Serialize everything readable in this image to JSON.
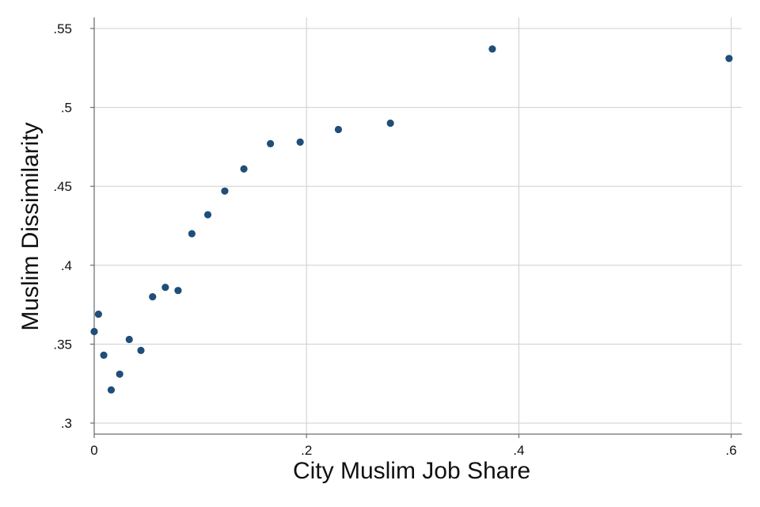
{
  "chart_data": {
    "type": "scatter",
    "title": "",
    "xlabel": "City Muslim Job Share",
    "ylabel": "Muslim Dissimilarity",
    "xlim": [
      0,
      0.61
    ],
    "ylim": [
      0.293,
      0.557
    ],
    "x_ticks": [
      {
        "value": 0,
        "label": "0"
      },
      {
        "value": 0.2,
        "label": ".2"
      },
      {
        "value": 0.4,
        "label": ".4"
      },
      {
        "value": 0.6,
        "label": ".6"
      }
    ],
    "y_ticks": [
      {
        "value": 0.3,
        "label": ".3"
      },
      {
        "value": 0.35,
        "label": ".35"
      },
      {
        "value": 0.4,
        "label": ".4"
      },
      {
        "value": 0.45,
        "label": ".45"
      },
      {
        "value": 0.5,
        "label": ".5"
      },
      {
        "value": 0.55,
        "label": ".55"
      }
    ],
    "grid": true,
    "marker_color": "#1f4e79",
    "points": [
      {
        "x": 0.0,
        "y": 0.358
      },
      {
        "x": 0.004,
        "y": 0.369
      },
      {
        "x": 0.009,
        "y": 0.343
      },
      {
        "x": 0.016,
        "y": 0.321
      },
      {
        "x": 0.024,
        "y": 0.331
      },
      {
        "x": 0.033,
        "y": 0.353
      },
      {
        "x": 0.044,
        "y": 0.346
      },
      {
        "x": 0.055,
        "y": 0.38
      },
      {
        "x": 0.067,
        "y": 0.386
      },
      {
        "x": 0.079,
        "y": 0.384
      },
      {
        "x": 0.092,
        "y": 0.42
      },
      {
        "x": 0.107,
        "y": 0.432
      },
      {
        "x": 0.123,
        "y": 0.447
      },
      {
        "x": 0.141,
        "y": 0.461
      },
      {
        "x": 0.166,
        "y": 0.477
      },
      {
        "x": 0.194,
        "y": 0.478
      },
      {
        "x": 0.23,
        "y": 0.486
      },
      {
        "x": 0.279,
        "y": 0.49
      },
      {
        "x": 0.375,
        "y": 0.537
      },
      {
        "x": 0.598,
        "y": 0.531
      }
    ]
  }
}
